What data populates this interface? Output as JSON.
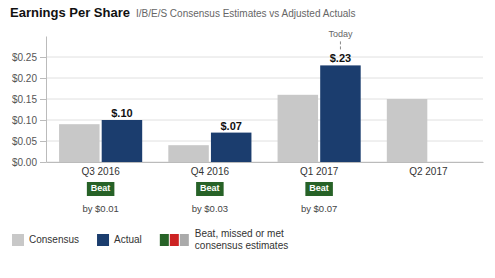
{
  "chart_data": {
    "type": "bar",
    "title": "Earnings Per Share",
    "subtitle": "I/B/E/S Consensus Estimates vs Adjusted Actuals",
    "categories": [
      "Q3 2016",
      "Q4 2016",
      "Q1 2017",
      "Q2 2017"
    ],
    "series": [
      {
        "name": "Consensus",
        "color": "#c8c8c8",
        "values": [
          0.09,
          0.04,
          0.16,
          0.15
        ]
      },
      {
        "name": "Actual",
        "color": "#1b3d6e",
        "values": [
          0.1,
          0.07,
          0.23,
          null
        ],
        "value_labels": [
          "$.10",
          "$.07",
          "$.23",
          null
        ],
        "data_labels": true
      }
    ],
    "ylim": [
      0,
      0.3
    ],
    "yticks": [
      {
        "value": 0.0,
        "label": "$0.00"
      },
      {
        "value": 0.05,
        "label": "$0.05"
      },
      {
        "value": 0.1,
        "label": "$0.10"
      },
      {
        "value": 0.15,
        "label": "$0.15"
      },
      {
        "value": 0.2,
        "label": "$0.20"
      },
      {
        "value": 0.25,
        "label": "$0.25"
      }
    ],
    "grid": true,
    "legend": "bottom",
    "annotations": {
      "badges": [
        "Beat",
        "Beat",
        "Beat",
        null
      ],
      "badge_color": "#276227",
      "badge_text_color": "#ffffff",
      "notes": [
        "by $0.01",
        "by $0.03",
        "by $0.07",
        null
      ],
      "today": {
        "text": "Today",
        "category": "Q1 2017",
        "series": "Actual"
      },
      "key": {
        "text": [
          "Beat, missed or met",
          "consensus estimates"
        ],
        "colors": [
          "#276227",
          "#cc2222",
          "#aaaaaa"
        ]
      }
    }
  }
}
